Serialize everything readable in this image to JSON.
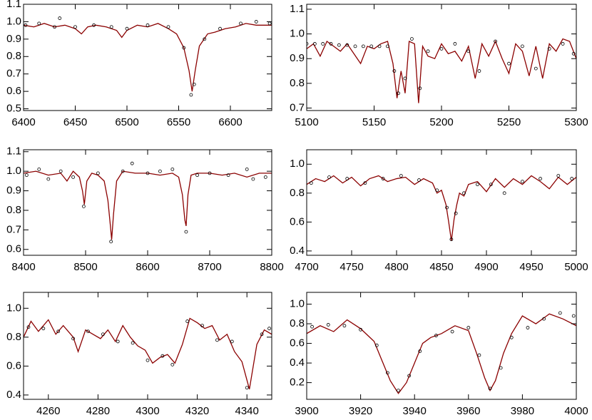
{
  "chart_data": [
    {
      "type": "line",
      "xlim": [
        6400,
        6640
      ],
      "ylim": [
        0.49,
        1.1
      ],
      "xticks": [
        6400,
        6450,
        6500,
        6550,
        6600
      ],
      "yticks": [
        0.5,
        0.6,
        0.7,
        0.8,
        0.9,
        {
          "value": 1,
          "label": "1.0"
        },
        1.1
      ],
      "series": [
        {
          "color": "#8b0000",
          "x": [
            6400,
            6410,
            6420,
            6430,
            6440,
            6450,
            6456,
            6462,
            6470,
            6480,
            6490,
            6495,
            6500,
            6510,
            6520,
            6530,
            6540,
            6548,
            6555,
            6560,
            6563,
            6566,
            6570,
            6578,
            6585,
            6595,
            6605,
            6615,
            6625,
            6640
          ],
          "values": [
            0.98,
            0.97,
            0.99,
            0.97,
            0.98,
            0.96,
            0.93,
            0.97,
            0.98,
            0.97,
            0.95,
            0.91,
            0.95,
            0.98,
            0.97,
            0.99,
            0.96,
            0.93,
            0.85,
            0.72,
            0.6,
            0.72,
            0.86,
            0.93,
            0.94,
            0.96,
            0.97,
            0.99,
            0.98,
            0.98
          ]
        },
        {
          "color": "#000000",
          "marker": "circle",
          "x": [
            6402,
            6415,
            6430,
            6435,
            6450,
            6468,
            6485,
            6500,
            6520,
            6540,
            6555,
            6562,
            6565,
            6575,
            6590,
            6610,
            6625,
            6638
          ],
          "values": [
            0.98,
            0.99,
            0.97,
            1.02,
            0.97,
            0.98,
            0.97,
            0.96,
            0.98,
            0.97,
            0.85,
            0.58,
            0.64,
            0.9,
            0.96,
            0.99,
            1.0,
            0.99
          ]
        }
      ]
    },
    {
      "type": "line",
      "xlim": [
        5100,
        5300
      ],
      "ylim": [
        0.69,
        1.12
      ],
      "xticks": [
        5100,
        5150,
        5200,
        5250,
        5300
      ],
      "yticks": [
        0.7,
        0.8,
        0.9,
        {
          "value": 1,
          "label": "1.0"
        },
        1.1
      ],
      "series": [
        {
          "color": "#8b0000",
          "x": [
            5100,
            5105,
            5110,
            5115,
            5120,
            5125,
            5130,
            5135,
            5140,
            5145,
            5150,
            5155,
            5160,
            5164,
            5167,
            5170,
            5173,
            5176,
            5180,
            5183,
            5186,
            5190,
            5195,
            5200,
            5205,
            5210,
            5215,
            5220,
            5225,
            5230,
            5235,
            5240,
            5245,
            5250,
            5255,
            5260,
            5265,
            5270,
            5275,
            5280,
            5285,
            5290,
            5295,
            5300
          ],
          "values": [
            0.94,
            0.96,
            0.91,
            0.97,
            0.95,
            0.93,
            0.96,
            0.92,
            0.88,
            0.95,
            0.94,
            0.96,
            0.97,
            0.88,
            0.74,
            0.85,
            0.76,
            0.97,
            0.96,
            0.72,
            0.95,
            0.91,
            0.9,
            0.96,
            0.92,
            0.93,
            0.89,
            0.95,
            0.82,
            0.96,
            0.91,
            0.97,
            0.9,
            0.84,
            0.96,
            0.93,
            0.83,
            0.95,
            0.82,
            0.96,
            0.93,
            0.98,
            0.97,
            0.9
          ]
        },
        {
          "color": "#000000",
          "marker": "circle",
          "x": [
            5100,
            5106,
            5112,
            5118,
            5124,
            5130,
            5136,
            5142,
            5148,
            5154,
            5160,
            5165,
            5168,
            5173,
            5178,
            5184,
            5190,
            5200,
            5210,
            5220,
            5228,
            5240,
            5250,
            5260,
            5270,
            5280,
            5290,
            5298
          ],
          "values": [
            0.96,
            0.96,
            0.96,
            0.96,
            0.955,
            0.955,
            0.95,
            0.95,
            0.95,
            0.95,
            0.95,
            0.85,
            0.76,
            0.82,
            0.98,
            0.78,
            0.93,
            0.94,
            0.96,
            0.93,
            0.85,
            0.97,
            0.88,
            0.95,
            0.86,
            0.94,
            0.96,
            0.92
          ]
        }
      ]
    },
    {
      "type": "line",
      "xlim": [
        8400,
        8800
      ],
      "ylim": [
        0.57,
        1.11
      ],
      "xticks": [
        8400,
        8500,
        8600,
        8700,
        8800
      ],
      "yticks": [
        0.6,
        0.7,
        0.8,
        0.9,
        {
          "value": 1,
          "label": "1.0"
        },
        1.1
      ],
      "series": [
        {
          "color": "#8b0000",
          "x": [
            8400,
            8420,
            8440,
            8460,
            8470,
            8480,
            8490,
            8495,
            8498,
            8502,
            8510,
            8520,
            8530,
            8536,
            8540,
            8542,
            8545,
            8550,
            8560,
            8580,
            8600,
            8620,
            8640,
            8650,
            8656,
            8660,
            8662,
            8665,
            8670,
            8680,
            8700,
            8720,
            8740,
            8760,
            8780,
            8800
          ],
          "values": [
            0.99,
            1.0,
            0.98,
            0.99,
            0.95,
            1.0,
            0.97,
            0.9,
            0.83,
            0.95,
            0.99,
            0.98,
            0.95,
            0.85,
            0.72,
            0.65,
            0.78,
            0.95,
            1.0,
            0.99,
            0.99,
            0.98,
            0.99,
            0.97,
            0.88,
            0.75,
            0.72,
            0.88,
            0.98,
            0.99,
            0.99,
            0.98,
            0.99,
            0.97,
            0.99,
            0.99
          ]
        },
        {
          "color": "#000000",
          "marker": "circle",
          "x": [
            8405,
            8425,
            8440,
            8460,
            8480,
            8497,
            8520,
            8541,
            8560,
            8575,
            8600,
            8620,
            8640,
            8662,
            8680,
            8700,
            8730,
            8760,
            8770,
            8790
          ],
          "values": [
            0.98,
            1.01,
            0.96,
            1.0,
            0.97,
            0.82,
            0.99,
            0.64,
            1.0,
            1.04,
            0.99,
            1.0,
            1.01,
            0.69,
            0.98,
            0.99,
            0.98,
            1.01,
            0.96,
            0.97
          ]
        }
      ]
    },
    {
      "type": "line",
      "xlim": [
        4700,
        5000
      ],
      "ylim": [
        0.37,
        1.1
      ],
      "xticks": [
        4700,
        4750,
        4800,
        4850,
        4900,
        4950,
        5000
      ],
      "yticks": [
        0.4,
        0.6,
        0.8,
        {
          "value": 1,
          "label": "1.0"
        }
      ],
      "series": [
        {
          "color": "#8b0000",
          "x": [
            4700,
            4710,
            4720,
            4730,
            4740,
            4750,
            4760,
            4770,
            4780,
            4790,
            4800,
            4810,
            4820,
            4830,
            4840,
            4845,
            4850,
            4855,
            4858,
            4861,
            4864,
            4867,
            4870,
            4875,
            4880,
            4890,
            4900,
            4910,
            4920,
            4930,
            4940,
            4950,
            4960,
            4970,
            4980,
            4990,
            5000
          ],
          "values": [
            0.86,
            0.9,
            0.88,
            0.92,
            0.87,
            0.91,
            0.85,
            0.9,
            0.92,
            0.88,
            0.9,
            0.91,
            0.86,
            0.9,
            0.87,
            0.8,
            0.82,
            0.72,
            0.6,
            0.47,
            0.62,
            0.72,
            0.8,
            0.78,
            0.86,
            0.88,
            0.81,
            0.9,
            0.84,
            0.9,
            0.86,
            0.92,
            0.88,
            0.83,
            0.91,
            0.86,
            0.91
          ]
        },
        {
          "color": "#000000",
          "marker": "circle",
          "x": [
            4705,
            4725,
            4745,
            4765,
            4785,
            4805,
            4825,
            4845,
            4856,
            4861,
            4866,
            4875,
            4890,
            4905,
            4920,
            4940,
            4960,
            4980,
            4995
          ],
          "values": [
            0.87,
            0.91,
            0.9,
            0.87,
            0.9,
            0.92,
            0.89,
            0.82,
            0.7,
            0.48,
            0.66,
            0.8,
            0.86,
            0.86,
            0.8,
            0.88,
            0.9,
            0.92,
            0.9
          ]
        }
      ]
    },
    {
      "type": "line",
      "xlim": [
        4250,
        4350
      ],
      "ylim": [
        0.37,
        1.11
      ],
      "xticks": [
        4260,
        4280,
        4300,
        4320,
        4340
      ],
      "yticks": [
        0.4,
        0.6,
        0.8,
        {
          "value": 1,
          "label": "1.0"
        }
      ],
      "series": [
        {
          "color": "#8b0000",
          "x": [
            4250,
            4253,
            4256,
            4260,
            4263,
            4266,
            4270,
            4272,
            4275,
            4278,
            4281,
            4284,
            4287,
            4290,
            4293,
            4296,
            4299,
            4302,
            4305,
            4308,
            4311,
            4314,
            4317,
            4320,
            4323,
            4326,
            4329,
            4332,
            4335,
            4338,
            4341,
            4344,
            4347,
            4350
          ],
          "values": [
            0.8,
            0.91,
            0.84,
            0.92,
            0.82,
            0.88,
            0.8,
            0.7,
            0.85,
            0.82,
            0.79,
            0.85,
            0.77,
            0.88,
            0.8,
            0.74,
            0.71,
            0.62,
            0.66,
            0.68,
            0.62,
            0.75,
            0.93,
            0.9,
            0.86,
            0.88,
            0.78,
            0.82,
            0.7,
            0.63,
            0.44,
            0.75,
            0.85,
            0.82
          ]
        },
        {
          "color": "#000000",
          "marker": "circle",
          "x": [
            4252,
            4258,
            4264,
            4270,
            4276,
            4282,
            4288,
            4294,
            4300,
            4306,
            4310,
            4316,
            4322,
            4328,
            4334,
            4340,
            4346,
            4349
          ],
          "values": [
            0.87,
            0.86,
            0.84,
            0.79,
            0.84,
            0.82,
            0.77,
            0.76,
            0.64,
            0.67,
            0.61,
            0.91,
            0.88,
            0.78,
            0.77,
            0.45,
            0.82,
            0.86
          ]
        }
      ]
    },
    {
      "type": "line",
      "xlim": [
        3900,
        4000
      ],
      "ylim": [
        0.03,
        1.12
      ],
      "xticks": [
        3900,
        3920,
        3940,
        3960,
        3980,
        4000
      ],
      "yticks": [
        0.2,
        0.4,
        0.6,
        0.8,
        {
          "value": 1,
          "label": "1.0"
        }
      ],
      "series": [
        {
          "color": "#8b0000",
          "x": [
            3900,
            3905,
            3910,
            3915,
            3920,
            3925,
            3928,
            3931,
            3934,
            3937,
            3940,
            3943,
            3946,
            3950,
            3955,
            3960,
            3963,
            3966,
            3968,
            3970,
            3973,
            3976,
            3980,
            3985,
            3990,
            3995,
            4000
          ],
          "values": [
            0.7,
            0.78,
            0.72,
            0.84,
            0.75,
            0.62,
            0.42,
            0.22,
            0.09,
            0.2,
            0.4,
            0.6,
            0.66,
            0.7,
            0.78,
            0.73,
            0.5,
            0.25,
            0.12,
            0.22,
            0.5,
            0.7,
            0.88,
            0.8,
            0.9,
            0.85,
            0.78
          ]
        },
        {
          "color": "#000000",
          "marker": "circle",
          "x": [
            3902,
            3908,
            3914,
            3920,
            3926,
            3930,
            3934,
            3938,
            3942,
            3948,
            3954,
            3960,
            3964,
            3968,
            3972,
            3976,
            3982,
            3988,
            3994,
            3999
          ],
          "values": [
            0.77,
            0.79,
            0.78,
            0.74,
            0.58,
            0.3,
            0.12,
            0.27,
            0.52,
            0.68,
            0.72,
            0.76,
            0.48,
            0.14,
            0.35,
            0.66,
            0.76,
            0.85,
            0.91,
            0.88
          ]
        }
      ]
    }
  ]
}
